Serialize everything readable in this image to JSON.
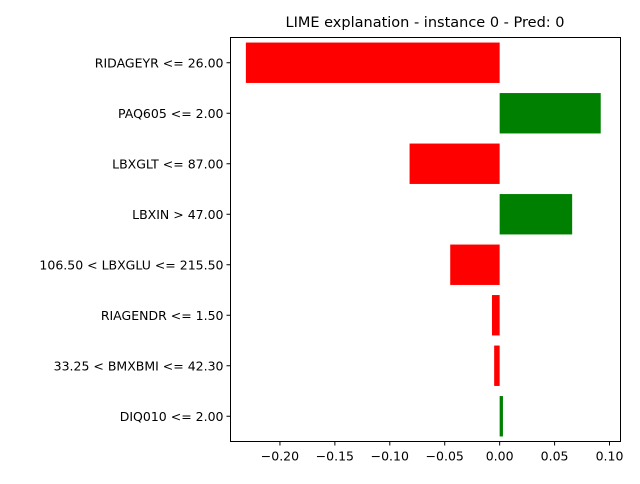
{
  "chart_data": {
    "type": "bar",
    "orientation": "horizontal",
    "title": "LIME explanation - instance 0 - Pred: 0",
    "xlabel": "",
    "ylabel": "",
    "xlim": [
      -0.245,
      0.11
    ],
    "xticks": [
      -0.2,
      -0.15,
      -0.1,
      -0.05,
      0.0,
      0.05,
      0.1
    ],
    "xtick_labels": [
      "−0.20",
      "−0.15",
      "−0.10",
      "−0.05",
      "0.00",
      "0.05",
      "0.10"
    ],
    "grid": false,
    "categories": [
      "RIDAGEYR <= 26.00",
      "PAQ605 <= 2.00",
      "LBXGLT <= 87.00",
      "LBXIN > 47.00",
      "106.50 < LBXGLU <= 215.50",
      "RIAGENDR <= 1.50",
      "33.25 < BMXBMI <= 42.30",
      "DIQ010 <= 2.00"
    ],
    "values": [
      -0.231,
      0.092,
      -0.082,
      0.066,
      -0.045,
      -0.007,
      -0.005,
      0.003
    ],
    "colors": {
      "positive": "#008000",
      "negative": "#ff0000"
    }
  }
}
